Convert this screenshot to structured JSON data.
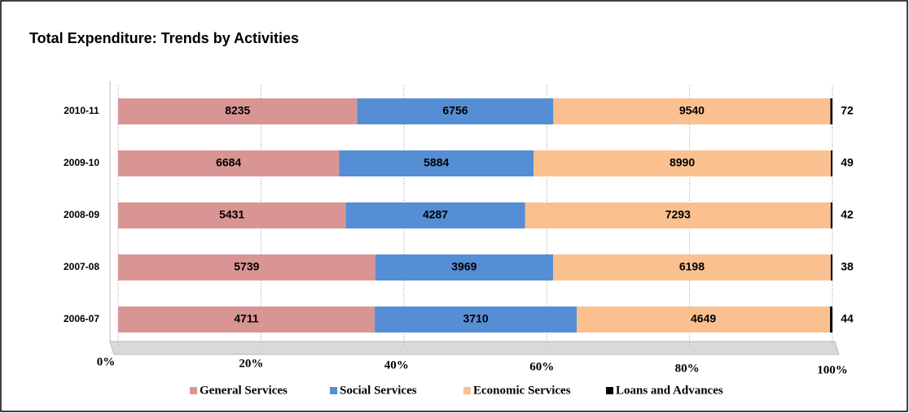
{
  "chart_data": {
    "type": "bar",
    "orientation": "horizontal",
    "stack": "percent",
    "title": "Total Expenditure: Trends by Activities",
    "categories": [
      "2010-11",
      "2009-10",
      "2008-09",
      "2007-08",
      "2006-07"
    ],
    "series": [
      {
        "name": "General Services",
        "color": "#d99594",
        "values": [
          8235,
          6684,
          5431,
          5739,
          4711
        ]
      },
      {
        "name": "Social Services",
        "color": "#558ed5",
        "values": [
          6756,
          5884,
          4287,
          3969,
          3710
        ]
      },
      {
        "name": "Economic Services",
        "color": "#fac090",
        "values": [
          9540,
          8990,
          7293,
          6198,
          4649
        ]
      },
      {
        "name": "Loans and Advances",
        "color": "#000000",
        "values": [
          72,
          49,
          42,
          38,
          44
        ]
      }
    ],
    "xlim": [
      0,
      100
    ],
    "xticks": [
      {
        "value": 0,
        "label": "0%"
      },
      {
        "value": 20,
        "label": "20%"
      },
      {
        "value": 40,
        "label": "40%"
      },
      {
        "value": 60,
        "label": "60%"
      },
      {
        "value": 80,
        "label": "80%"
      },
      {
        "value": 100,
        "label": "100%"
      }
    ],
    "grid": true,
    "legend": "bottom"
  }
}
